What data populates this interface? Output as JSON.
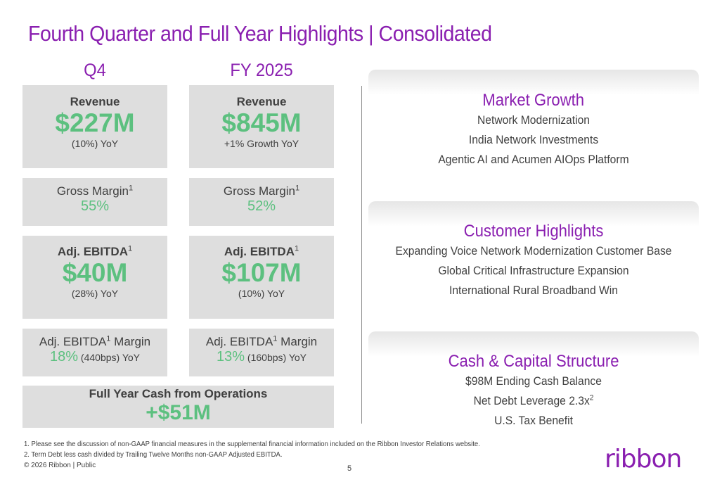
{
  "title": "Fourth Quarter and Full Year Highlights | Consolidated",
  "columns": {
    "q4": "Q4",
    "fy": "FY 2025"
  },
  "q4": {
    "revenue_label": "Revenue",
    "revenue_value": "$227M",
    "revenue_sub": "(10%) YoY",
    "gross_margin_label": "Gross Margin",
    "gross_margin_sup": "1",
    "gross_margin_value": "55%",
    "ebitda_label": "Adj. EBITDA",
    "ebitda_sup": "1",
    "ebitda_value": "$40M",
    "ebitda_sub": "(28%) YoY",
    "ebitda_margin_label_a": "Adj. EBITDA",
    "ebitda_margin_sup": "1",
    "ebitda_margin_label_b": " Margin",
    "ebitda_margin_value": "18%",
    "ebitda_margin_sub": " (440bps) YoY"
  },
  "fy": {
    "revenue_label": "Revenue",
    "revenue_value": "$845M",
    "revenue_sub": "+1% Growth YoY",
    "gross_margin_label": "Gross Margin",
    "gross_margin_sup": "1",
    "gross_margin_value": "52%",
    "ebitda_label": "Adj. EBITDA",
    "ebitda_sup": "1",
    "ebitda_value": "$107M",
    "ebitda_sub": "(10%) YoY",
    "ebitda_margin_label_a": "Adj. EBITDA",
    "ebitda_margin_sup": "1",
    "ebitda_margin_label_b": " Margin",
    "ebitda_margin_value": "13%",
    "ebitda_margin_sub": " (160bps) YoY"
  },
  "cash_ops": {
    "label": "Full Year Cash from Operations",
    "value": "+$51M"
  },
  "market_growth": {
    "title": "Market Growth",
    "lines": [
      "Network Modernization",
      "India Network Investments",
      "Agentic AI and Acumen AIOps Platform"
    ]
  },
  "customer_highlights": {
    "title": "Customer Highlights",
    "lines": [
      "Expanding Voice Network Modernization Customer Base",
      "Global Critical Infrastructure Expansion",
      "International Rural Broadband Win"
    ]
  },
  "cash_capital": {
    "title": "Cash & Capital Structure",
    "line1": "$98M Ending Cash Balance",
    "line2": "Net Debt Leverage 2.3x",
    "line2_sup": "2",
    "line3": "U.S. Tax Benefit"
  },
  "footnotes": [
    "1.  Please see the discussion of non-GAAP financial measures in the supplemental financial information included on the Ribbon Investor Relations website.",
    "2.  Term Debt less cash divided by Trailing Twelve Months non-GAAP Adjusted EBITDA."
  ],
  "copyright": "© 2026 Ribbon | Public",
  "page_number": "5",
  "logo_text": "ribbon",
  "colors": {
    "accent_purple": "#8a1fb0",
    "value_green": "#5cc07f",
    "card_gray": "#dedede"
  }
}
